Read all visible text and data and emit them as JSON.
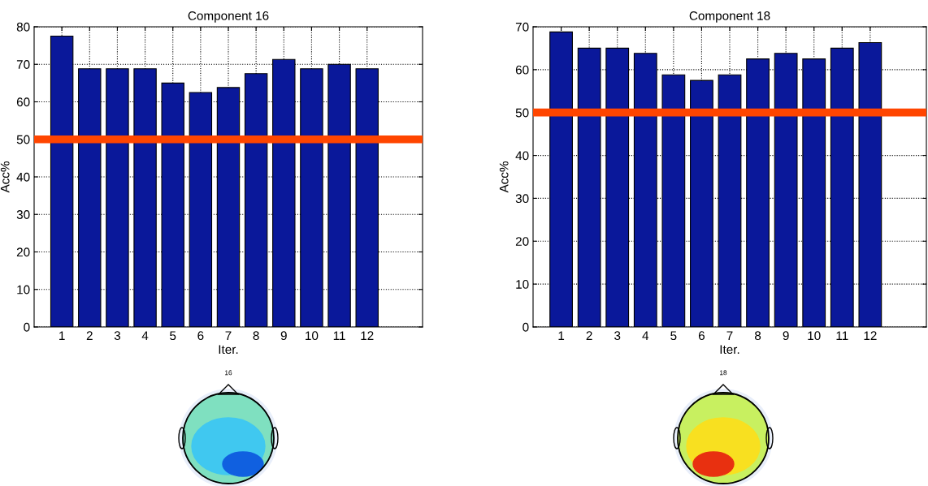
{
  "chart_data": [
    {
      "type": "bar",
      "title": "Component 16",
      "xlabel": "Iter.",
      "ylabel": "Acc%",
      "categories": [
        "1",
        "2",
        "3",
        "4",
        "5",
        "6",
        "7",
        "8",
        "9",
        "10",
        "11",
        "12"
      ],
      "values": [
        77.5,
        68.8,
        68.8,
        68.8,
        65,
        62.5,
        63.8,
        67.5,
        71.3,
        68.8,
        70,
        68.8
      ],
      "color": "#0a189a",
      "ylim": [
        0,
        80
      ],
      "yticks": [
        0,
        10,
        20,
        30,
        40,
        50,
        60,
        70,
        80
      ],
      "grid": true,
      "ref_lines": [
        {
          "axis": "y",
          "value": 50,
          "color": "#ff4500"
        }
      ],
      "annotations": [
        "16"
      ]
    },
    {
      "type": "bar",
      "title": "Component 18",
      "xlabel": "Iter.",
      "ylabel": "Acc%",
      "categories": [
        "1",
        "2",
        "3",
        "4",
        "5",
        "6",
        "7",
        "8",
        "9",
        "10",
        "11",
        "12"
      ],
      "values": [
        68.8,
        65,
        65,
        63.8,
        58.8,
        57.5,
        58.8,
        62.5,
        63.8,
        62.5,
        65,
        66.3
      ],
      "color": "#0a189a",
      "ylim": [
        0,
        70
      ],
      "yticks": [
        0,
        10,
        20,
        30,
        40,
        50,
        60,
        70
      ],
      "grid": true,
      "ref_lines": [
        {
          "axis": "y",
          "value": 50,
          "color": "#ff4500"
        }
      ],
      "annotations": [
        "18"
      ]
    }
  ]
}
